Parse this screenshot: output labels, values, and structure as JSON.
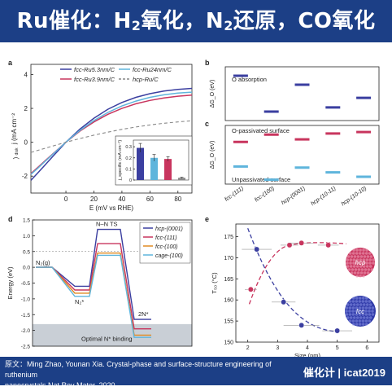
{
  "banner": {
    "part1": "Ru催化：H",
    "sub1": "2",
    "part2": "氧化，N",
    "sub2": "2",
    "part3": "还原，CO氧化"
  },
  "footer": {
    "citation_line1": "原文：Ming Zhao, Younan Xia. Crystal-phase and surface-structure engineering of ruthenium",
    "citation_line2": "nanocrystals Nat Rev Mater. 2020.",
    "logo": "催化计 | icat2019"
  },
  "colors": {
    "hcp0001": "#3b3fa0",
    "fcc111": "#c8355e",
    "fcc100": "#e08a22",
    "cage100": "#5fb5dc",
    "dash": "#888888"
  },
  "chart_data": [
    {
      "panel": "a",
      "type": "line",
      "xlabel": "E (mV vs RHE)",
      "xlim": [
        -25,
        90
      ],
      "ylim": [
        -3,
        4.6
      ],
      "xticks": [
        0,
        20,
        40,
        60,
        80
      ],
      "yticks": [
        -2,
        0,
        2,
        4
      ],
      "legend": [
        "fcc-Ru5.3nm/C",
        "fcc-Ru3.9nm/C",
        "fcc-Ru24nm/C",
        "hcp-Ru/C"
      ],
      "series": [
        {
          "name": "fcc-Ru5.3nm/C",
          "color": "#3b3fa0",
          "x": [
            -25,
            -20,
            -15,
            -10,
            -5,
            0,
            10,
            20,
            30,
            40,
            50,
            60,
            70,
            80,
            90
          ],
          "y": [
            -2.25,
            -1.8,
            -1.35,
            -0.9,
            -0.45,
            0,
            0.78,
            1.42,
            1.95,
            2.35,
            2.65,
            2.87,
            3.02,
            3.12,
            3.18
          ]
        },
        {
          "name": "fcc-Ru3.9nm/C",
          "color": "#c8355e",
          "x": [
            -25,
            -20,
            -15,
            -10,
            -5,
            0,
            10,
            20,
            30,
            40,
            50,
            60,
            70,
            80,
            90
          ],
          "y": [
            -1.85,
            -1.48,
            -1.1,
            -0.74,
            -0.37,
            0,
            0.66,
            1.2,
            1.65,
            2.0,
            2.27,
            2.47,
            2.62,
            2.72,
            2.78
          ]
        },
        {
          "name": "fcc-Ru24nm/C",
          "color": "#5fb5dc",
          "x": [
            -25,
            -20,
            -15,
            -10,
            -5,
            0,
            10,
            20,
            30,
            40,
            50,
            60,
            70,
            80,
            90
          ],
          "y": [
            -1.9,
            -1.53,
            -1.14,
            -0.76,
            -0.38,
            0,
            0.7,
            1.28,
            1.76,
            2.14,
            2.43,
            2.65,
            2.8,
            2.9,
            2.96
          ]
        },
        {
          "name": "hcp-Ru/C",
          "color": "#888888",
          "dashed": true,
          "x": [
            -25,
            -15,
            -5,
            0,
            10,
            20,
            30,
            40,
            50,
            60,
            70,
            80,
            90
          ],
          "y": [
            -0.6,
            -0.36,
            -0.12,
            0,
            0.22,
            0.42,
            0.6,
            0.76,
            0.9,
            1.02,
            1.12,
            1.2,
            1.27
          ]
        }
      ],
      "inset": {
        "ylabel": "j_specific (mA cm⁻²)",
        "yticks": [
          0,
          0.1,
          0.2,
          0.3
        ],
        "ylim": [
          0,
          0.36
        ],
        "values": [
          0.29,
          0.2,
          0.19,
          0.02
        ],
        "errors": [
          0.04,
          0.03,
          0.02,
          0.005
        ],
        "colors": [
          "#3b3fa0",
          "#5fb5dc",
          "#c8355e",
          "#888888"
        ]
      }
    },
    {
      "panel": "b",
      "type": "scatter",
      "ylabel": "ΔG_O (eV)",
      "title": "O absorption",
      "categories": [
        "fcc-(111)",
        "fcc-(100)",
        "hcp-(0001)",
        "hcp-(10-11)",
        "hcp-(10-10)"
      ],
      "values": [
        0.25,
        -0.35,
        0.1,
        -0.28,
        -0.12
      ],
      "color": "#3b3fa0"
    },
    {
      "panel": "c",
      "type": "scatter",
      "ylabel": "ΔG_O (eV)",
      "labels": [
        "O-passivated surface",
        "Unpassivated surface"
      ],
      "categories": [
        "fcc-(111)",
        "fcc-(100)",
        "hcp-(0001)",
        "hcp-(10-11)",
        "hcp-(10-10)"
      ],
      "series": [
        {
          "name": "O-passivated surface",
          "color": "#c8355e",
          "values": [
            0.15,
            0.35,
            0.22,
            0.38,
            0.42
          ]
        },
        {
          "name": "Unpassivated surface",
          "color": "#5fb5dc",
          "values": [
            -0.52,
            -0.88,
            -0.55,
            -0.68,
            -0.8
          ]
        }
      ],
      "ylim": [
        -1.0,
        0.6
      ]
    },
    {
      "panel": "d",
      "type": "line",
      "ylabel": "Energy (eV)",
      "ylim": [
        -2.5,
        1.5
      ],
      "yticks": [
        -2.5,
        -2.0,
        -1.5,
        -1.0,
        -0.5,
        0,
        0.5,
        1.0,
        1.5
      ],
      "states": [
        "N₂(g)",
        "N₂*",
        "N–N TS",
        "2N*"
      ],
      "state_label_Nts": "N–N TS",
      "optimal_label": "Optimal N* binding",
      "legend": [
        "hcp-(0001)",
        "fcc-(111)",
        "fcc-(100)",
        "cage-(100)"
      ],
      "series": [
        {
          "name": "hcp-(0001)",
          "color": "#3b3fa0",
          "values": [
            0,
            -0.6,
            1.2,
            -1.65
          ]
        },
        {
          "name": "fcc-(111)",
          "color": "#c8355e",
          "values": [
            0,
            -0.72,
            0.75,
            -1.95
          ]
        },
        {
          "name": "fcc-(100)",
          "color": "#e08a22",
          "values": [
            0,
            -0.82,
            0.45,
            -2.15
          ]
        },
        {
          "name": "cage-(100)",
          "color": "#5fb5dc",
          "values": [
            0,
            -0.92,
            0.38,
            -2.22
          ]
        }
      ]
    },
    {
      "panel": "e",
      "type": "scatter",
      "xlabel": "Size (nm)",
      "ylabel": "T₅₀ (°C)",
      "xlim": [
        1.6,
        6.4
      ],
      "ylim": [
        150,
        178
      ],
      "xticks": [
        2,
        3,
        4,
        5,
        6
      ],
      "yticks": [
        150,
        155,
        160,
        165,
        170,
        175
      ],
      "series": [
        {
          "name": "hcp",
          "color": "#c8355e",
          "x": [
            2.1,
            3.4,
            3.8,
            4.7
          ],
          "y": [
            162.5,
            173,
            173.5,
            173
          ],
          "xerr": [
            0.2,
            0.3,
            0.4,
            0.35
          ]
        },
        {
          "name": "fcc",
          "color": "#3b3fa0",
          "x": [
            2.3,
            3.2,
            3.8,
            5.0
          ],
          "y": [
            172,
            159.5,
            154,
            152.7
          ],
          "xerr": [
            0.5,
            0.4,
            0.6,
            0.5
          ]
        }
      ],
      "labels": [
        "hcp",
        "fcc"
      ]
    }
  ],
  "panel_letters": [
    "a",
    "b",
    "c",
    "d",
    "e"
  ]
}
